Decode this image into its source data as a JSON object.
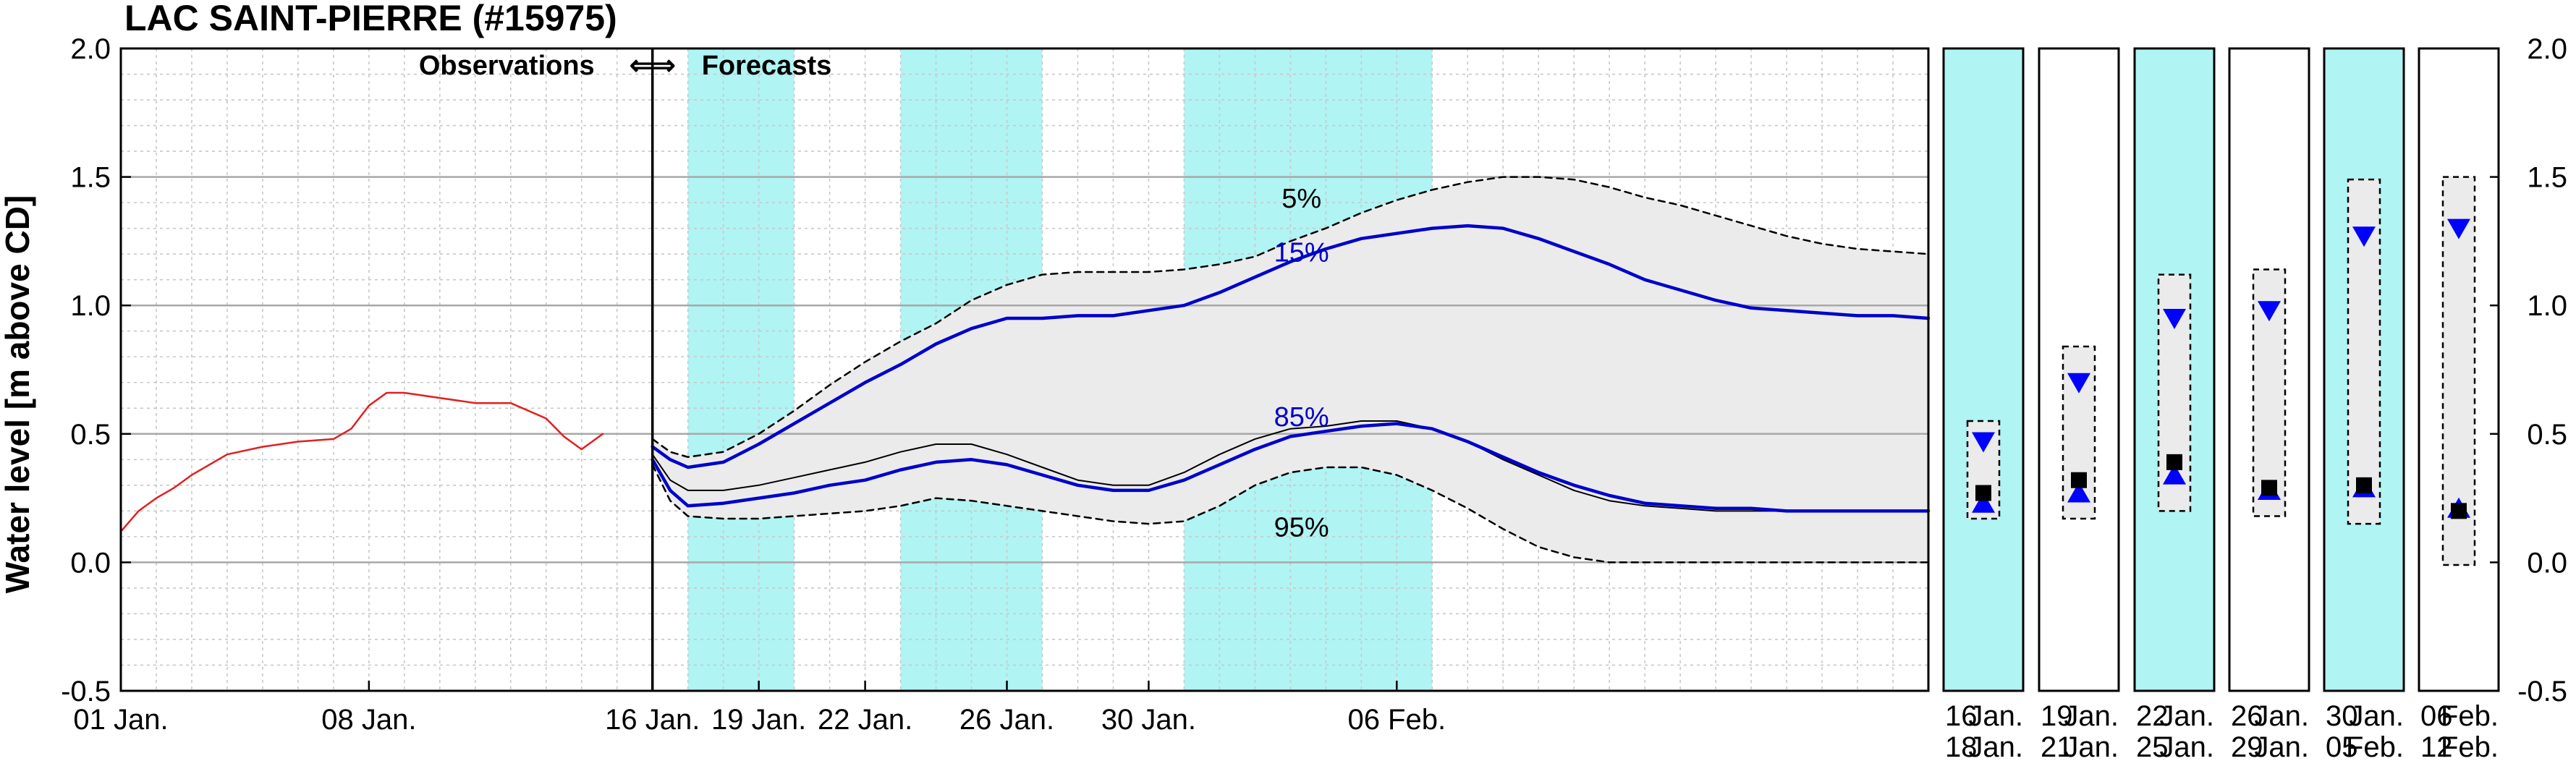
{
  "chart_data": {
    "type": "line",
    "title": "LAC SAINT-PIERRE (#15975)",
    "ylabel": "Water level [m above CD]",
    "ylim": [
      -0.5,
      2.0
    ],
    "yticks": [
      "-0.5",
      "0.0",
      "0.5",
      "1.0",
      "1.5",
      "2.0"
    ],
    "xlim_days": [
      0,
      51
    ],
    "xticks": [
      {
        "day": 0,
        "label": "01 Jan."
      },
      {
        "day": 7,
        "label": "08 Jan."
      },
      {
        "day": 15,
        "label": "16 Jan."
      },
      {
        "day": 18,
        "label": "19 Jan."
      },
      {
        "day": 21,
        "label": "22 Jan."
      },
      {
        "day": 25,
        "label": "26 Jan."
      },
      {
        "day": 29,
        "label": "30 Jan."
      },
      {
        "day": 36,
        "label": "06 Feb."
      }
    ],
    "divider_day": 15,
    "annotations": {
      "observations": "Observations",
      "arrows": "⇐⇒",
      "forecasts": "Forecasts"
    },
    "shaded_periods": [
      [
        16,
        19
      ],
      [
        22,
        26
      ],
      [
        30,
        37
      ]
    ],
    "percentile_labels": [
      {
        "text": "5%",
        "color": "#000000",
        "day": 32.7,
        "y": 1.42
      },
      {
        "text": "15%",
        "color": "#0000cc",
        "day": 32.7,
        "y": 1.21
      },
      {
        "text": "85%",
        "color": "#0000cc",
        "day": 32.7,
        "y": 0.57
      },
      {
        "text": "95%",
        "color": "#000000",
        "day": 32.7,
        "y": 0.14
      }
    ],
    "series": [
      {
        "role": "observed",
        "color": "#e02020",
        "x": [
          0,
          0.5,
          1,
          1.5,
          2,
          3,
          4,
          5,
          6,
          6.5,
          7,
          7.5,
          8,
          9,
          10,
          11,
          12,
          12.5,
          13,
          13.6
        ],
        "y": [
          0.12,
          0.2,
          0.25,
          0.29,
          0.34,
          0.42,
          0.45,
          0.47,
          0.48,
          0.52,
          0.61,
          0.66,
          0.66,
          0.64,
          0.62,
          0.62,
          0.56,
          0.49,
          0.44,
          0.5
        ]
      },
      {
        "role": "5%",
        "color": "#000000",
        "dash": true,
        "x": [
          15,
          15.5,
          16,
          17,
          18,
          19,
          20,
          21,
          22,
          23,
          24,
          25,
          26,
          27,
          28,
          29,
          30,
          31,
          32,
          33,
          34,
          35,
          36,
          37,
          38,
          39,
          40,
          41,
          42,
          43,
          44,
          45,
          46,
          47,
          48,
          49,
          50,
          51
        ],
        "y": [
          0.48,
          0.43,
          0.41,
          0.43,
          0.5,
          0.59,
          0.69,
          0.78,
          0.86,
          0.93,
          1.02,
          1.08,
          1.12,
          1.13,
          1.13,
          1.13,
          1.14,
          1.16,
          1.19,
          1.25,
          1.3,
          1.36,
          1.41,
          1.45,
          1.48,
          1.5,
          1.5,
          1.49,
          1.46,
          1.42,
          1.39,
          1.35,
          1.31,
          1.27,
          1.24,
          1.22,
          1.21,
          1.2
        ]
      },
      {
        "role": "15%",
        "color": "#0000cc",
        "x": [
          15,
          15.5,
          16,
          17,
          18,
          19,
          20,
          21,
          22,
          23,
          24,
          25,
          26,
          27,
          28,
          29,
          30,
          31,
          32,
          33,
          34,
          35,
          36,
          37,
          38,
          39,
          40,
          41,
          42,
          43,
          44,
          45,
          46,
          47,
          48,
          49,
          50,
          51
        ],
        "y": [
          0.45,
          0.4,
          0.37,
          0.39,
          0.46,
          0.54,
          0.62,
          0.7,
          0.77,
          0.85,
          0.91,
          0.95,
          0.95,
          0.96,
          0.96,
          0.98,
          1.0,
          1.05,
          1.11,
          1.17,
          1.22,
          1.26,
          1.28,
          1.3,
          1.31,
          1.3,
          1.26,
          1.21,
          1.16,
          1.1,
          1.06,
          1.02,
          0.99,
          0.98,
          0.97,
          0.96,
          0.96,
          0.95
        ]
      },
      {
        "role": "median",
        "color": "#000000",
        "width": 2,
        "x": [
          15,
          15.5,
          16,
          17,
          18,
          19,
          20,
          21,
          22,
          23,
          24,
          25,
          26,
          27,
          28,
          29,
          30,
          31,
          32,
          33,
          34,
          35,
          36,
          37,
          38,
          39,
          40,
          41,
          42,
          43,
          44,
          45,
          46,
          47,
          48,
          49,
          50,
          51
        ],
        "y": [
          0.42,
          0.32,
          0.28,
          0.28,
          0.3,
          0.33,
          0.36,
          0.39,
          0.43,
          0.46,
          0.46,
          0.42,
          0.37,
          0.32,
          0.3,
          0.3,
          0.35,
          0.42,
          0.48,
          0.52,
          0.53,
          0.55,
          0.55,
          0.52,
          0.47,
          0.4,
          0.34,
          0.28,
          0.24,
          0.22,
          0.21,
          0.2,
          0.2,
          0.2,
          0.2,
          0.2,
          0.2,
          0.2
        ]
      },
      {
        "role": "85%",
        "color": "#0000cc",
        "x": [
          15,
          15.5,
          16,
          17,
          18,
          19,
          20,
          21,
          22,
          23,
          24,
          25,
          26,
          27,
          28,
          29,
          30,
          31,
          32,
          33,
          34,
          35,
          36,
          37,
          38,
          39,
          40,
          41,
          42,
          43,
          44,
          45,
          46,
          47,
          48,
          49,
          50,
          51
        ],
        "y": [
          0.4,
          0.28,
          0.22,
          0.23,
          0.25,
          0.27,
          0.3,
          0.32,
          0.36,
          0.39,
          0.4,
          0.38,
          0.34,
          0.3,
          0.28,
          0.28,
          0.32,
          0.38,
          0.44,
          0.49,
          0.51,
          0.53,
          0.54,
          0.52,
          0.47,
          0.41,
          0.35,
          0.3,
          0.26,
          0.23,
          0.22,
          0.21,
          0.21,
          0.2,
          0.2,
          0.2,
          0.2,
          0.2
        ]
      },
      {
        "role": "95%",
        "color": "#000000",
        "dash": true,
        "x": [
          15,
          15.5,
          16,
          17,
          18,
          19,
          20,
          21,
          22,
          23,
          24,
          25,
          26,
          27,
          28,
          29,
          30,
          31,
          32,
          33,
          34,
          35,
          36,
          37,
          38,
          39,
          40,
          41,
          42,
          43,
          44,
          45,
          46,
          47,
          48,
          49,
          50,
          51
        ],
        "y": [
          0.38,
          0.24,
          0.18,
          0.17,
          0.17,
          0.18,
          0.19,
          0.2,
          0.22,
          0.25,
          0.24,
          0.22,
          0.2,
          0.18,
          0.16,
          0.15,
          0.16,
          0.22,
          0.3,
          0.35,
          0.37,
          0.37,
          0.34,
          0.28,
          0.21,
          0.13,
          0.06,
          0.02,
          0.0,
          0.0,
          0.0,
          0.0,
          0.0,
          0.0,
          0.0,
          0.0,
          0.0,
          0.0
        ]
      }
    ],
    "summary_panels": [
      {
        "label_top": [
          "16",
          "Jan."
        ],
        "label_bottom": [
          "18",
          "Jan."
        ],
        "shaded": true,
        "box": [
          0.17,
          0.55
        ],
        "down_tri": 0.47,
        "square": 0.27,
        "up_tri": 0.23
      },
      {
        "label_top": [
          "19",
          "Jan."
        ],
        "label_bottom": [
          "21",
          "Jan."
        ],
        "shaded": false,
        "box": [
          0.17,
          0.84
        ],
        "down_tri": 0.7,
        "square": 0.32,
        "up_tri": 0.27
      },
      {
        "label_top": [
          "22",
          "Jan."
        ],
        "label_bottom": [
          "25",
          "Jan."
        ],
        "shaded": true,
        "box": [
          0.2,
          1.12
        ],
        "down_tri": 0.95,
        "square": 0.39,
        "up_tri": 0.34
      },
      {
        "label_top": [
          "26",
          "Jan."
        ],
        "label_bottom": [
          "29",
          "Jan."
        ],
        "shaded": false,
        "box": [
          0.18,
          1.14
        ],
        "down_tri": 0.98,
        "square": 0.29,
        "up_tri": 0.28
      },
      {
        "label_top": [
          "30",
          "Jan."
        ],
        "label_bottom": [
          "05",
          "Feb."
        ],
        "shaded": true,
        "box": [
          0.15,
          1.49
        ],
        "down_tri": 1.27,
        "square": 0.3,
        "up_tri": 0.29
      },
      {
        "label_top": [
          "06",
          "Feb."
        ],
        "label_bottom": [
          "12",
          "Feb."
        ],
        "shaded": false,
        "box": [
          -0.01,
          1.5
        ],
        "down_tri": 1.3,
        "square": 0.2,
        "up_tri": 0.21
      }
    ],
    "colors": {
      "shade": "#b0f4f4",
      "band": "#ebebeb",
      "observed": "#e02020",
      "forecast": "#0000cc"
    }
  }
}
